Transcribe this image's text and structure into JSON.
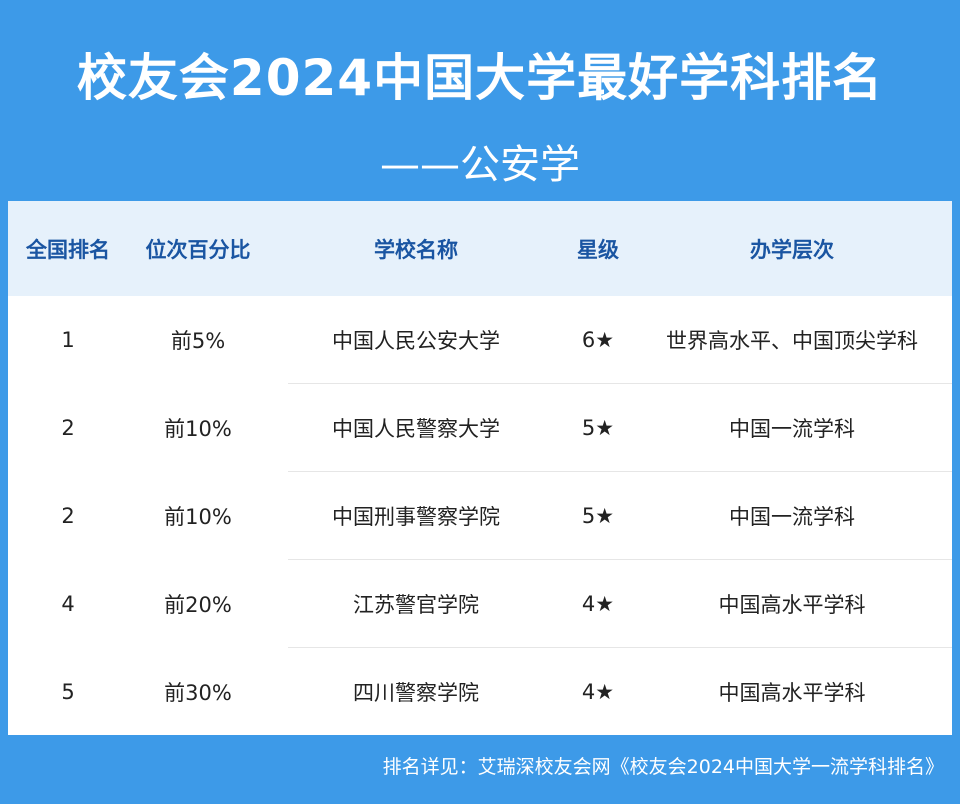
{
  "header": {
    "title": "校友会2024中国大学最好学科排名",
    "subtitle": "——公安学"
  },
  "table": {
    "columns": [
      "全国排名",
      "位次百分比",
      "学校名称",
      "星级",
      "办学层次"
    ],
    "rows": [
      [
        "1",
        "前5%",
        "中国人民公安大学",
        "6★",
        "世界高水平、中国顶尖学科"
      ],
      [
        "2",
        "前10%",
        "中国人民警察大学",
        "5★",
        "中国一流学科"
      ],
      [
        "2",
        "前10%",
        "中国刑事警察学院",
        "5★",
        "中国一流学科"
      ],
      [
        "4",
        "前20%",
        "江苏警官学院",
        "4★",
        "中国高水平学科"
      ],
      [
        "5",
        "前30%",
        "四川警察学院",
        "4★",
        "中国高水平学科"
      ]
    ]
  },
  "footer": {
    "source": "排名详见：艾瑞深校友会网《校友会2024中国大学一流学科排名》"
  },
  "colors": {
    "background": "#3d9ae8",
    "header_row": "#e6f1fb",
    "header_text": "#1a55a2"
  }
}
